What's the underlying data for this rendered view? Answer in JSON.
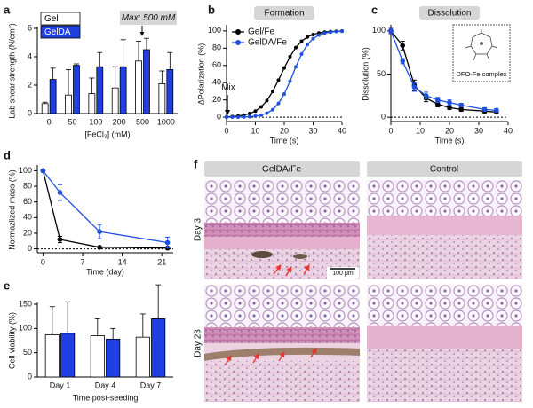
{
  "chart_data": [
    {
      "type": "bar",
      "label": "a",
      "categories": [
        "0",
        "50",
        "100",
        "200",
        "500",
        "1000"
      ],
      "series": [
        {
          "name": "Gel",
          "color": "#ffffff",
          "values": [
            0.7,
            1.3,
            1.4,
            1.8,
            3.7,
            2.1
          ],
          "errors": [
            0.1,
            1.8,
            1.1,
            1.5,
            1.4,
            0.9
          ]
        },
        {
          "name": "GelDA",
          "color": "#1f3fe0",
          "values": [
            2.4,
            3.4,
            3.3,
            3.3,
            4.5,
            3.1
          ],
          "errors": [
            0.8,
            0.1,
            1.0,
            1.9,
            0.8,
            1.2
          ]
        }
      ],
      "ylim": [
        0,
        6
      ],
      "yticks": [
        0,
        2,
        4,
        6
      ],
      "ylabel": "Lab shear strength (N/cm²)",
      "xlabel": "[FeCl₃] (mM)",
      "annotation": "Max: 500 mM"
    },
    {
      "type": "line",
      "label": "b",
      "title": "Formation",
      "x": [
        0,
        2,
        4,
        6,
        8,
        10,
        12,
        14,
        16,
        18,
        20,
        22,
        24,
        26,
        28,
        30,
        32,
        34,
        36,
        38,
        40
      ],
      "series": [
        {
          "name": "Gel/Fe",
          "color": "#000000",
          "values": [
            0.4,
            0.8,
            1.4,
            2.4,
            4.2,
            7.1,
            11.9,
            19.3,
            29.8,
            42.9,
            57.1,
            70.2,
            80.7,
            88.1,
            92.9,
            95.8,
            97.6,
            98.6,
            99.2,
            99.6,
            99.8
          ]
        },
        {
          "name": "GelDA/Fe",
          "color": "#1f4fe0",
          "values": [
            0,
            0.1,
            0.1,
            0.3,
            0.7,
            1.3,
            2.5,
            4.7,
            8.8,
            15.9,
            26.9,
            41.7,
            58.3,
            73.1,
            84.1,
            91.0,
            95.2,
            97.4,
            98.6,
            99.3,
            99.6
          ]
        }
      ],
      "xlim": [
        0,
        40
      ],
      "xticks": [
        0,
        10,
        20,
        30,
        40
      ],
      "ylim": [
        -5,
        105
      ],
      "yticks": [
        0,
        20,
        40,
        60,
        80,
        100
      ],
      "xlabel": "Time (s)",
      "ylabel": "ΔPolarization (%)",
      "annotation": "Mix",
      "dashed_baseline": true
    },
    {
      "type": "line",
      "label": "c",
      "title": "Dissolution",
      "x": [
        0,
        4,
        8,
        12,
        16,
        20,
        24,
        32,
        36
      ],
      "series": [
        {
          "color": "#000000",
          "values": [
            100,
            83,
            37,
            22,
            15,
            11,
            9,
            7,
            6
          ],
          "errors": [
            3,
            5,
            6,
            4,
            3,
            2,
            2,
            2,
            2
          ]
        },
        {
          "color": "#1f4fe0",
          "values": [
            100,
            65,
            35,
            25,
            20,
            17,
            14,
            9,
            8
          ],
          "errors": [
            3,
            3,
            5,
            4,
            3,
            3,
            2,
            2,
            2
          ]
        }
      ],
      "xlim": [
        0,
        40
      ],
      "xticks": [
        0,
        10,
        20,
        30,
        40
      ],
      "ylim": [
        -5,
        105
      ],
      "yticks": [
        0,
        50,
        100
      ],
      "xlabel": "Time (s)",
      "ylabel": "Dissolution (%)",
      "annotation": "DFO-Fe complex",
      "dashed_baseline": true
    },
    {
      "type": "line",
      "label": "d",
      "x": [
        0,
        3,
        10,
        22
      ],
      "series": [
        {
          "color": "#000000",
          "values": [
            100,
            12,
            2,
            1
          ],
          "errors": [
            0,
            4,
            1,
            1
          ]
        },
        {
          "color": "#1f4fe0",
          "values": [
            100,
            72,
            22,
            8
          ],
          "errors": [
            0,
            10,
            9,
            7
          ]
        }
      ],
      "xlim": [
        -1,
        23
      ],
      "xticks": [
        0,
        7,
        14,
        21
      ],
      "ylim": [
        -5,
        105
      ],
      "yticks": [
        0,
        20,
        40,
        60,
        80,
        100
      ],
      "xlabel": "Time (day)",
      "ylabel": "Normazlized mass (%)",
      "dashed_baseline": true
    },
    {
      "type": "bar",
      "label": "e",
      "categories": [
        "Day 1",
        "Day 4",
        "Day 7"
      ],
      "series": [
        {
          "color": "#ffffff",
          "values": [
            87,
            85,
            82
          ],
          "errors": [
            58,
            35,
            48
          ]
        },
        {
          "color": "#1f3fe0",
          "values": [
            90,
            78,
            120
          ],
          "errors": [
            65,
            22,
            70
          ]
        }
      ],
      "ylim": [
        0,
        150
      ],
      "yticks": [
        0,
        50,
        100,
        150
      ],
      "ylabel": "Cell viability (%)",
      "xlabel": "Time post-seeding"
    }
  ],
  "histology": {
    "label": "f",
    "columns": [
      "GelDA/Fe",
      "Control"
    ],
    "rows": [
      "Day 3",
      "Day 23"
    ],
    "scale_bar": "100 μm"
  }
}
